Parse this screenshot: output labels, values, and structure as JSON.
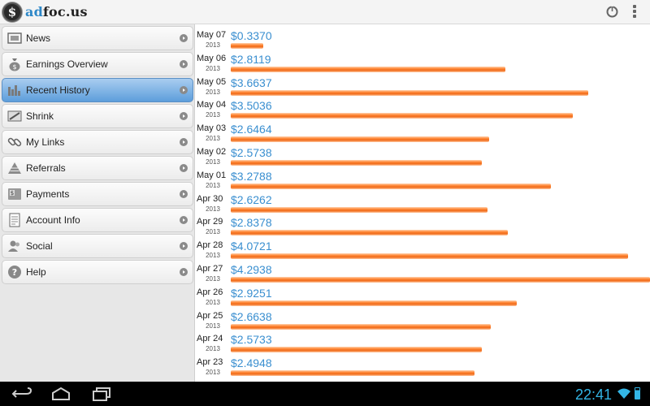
{
  "app": {
    "title_prefix": "ad",
    "title_rest": "foc.us"
  },
  "sidebar": {
    "items": [
      {
        "label": "News",
        "icon": "newspaper-icon",
        "active": false
      },
      {
        "label": "Earnings Overview",
        "icon": "money-bag-icon",
        "active": false
      },
      {
        "label": "Recent History",
        "icon": "bar-chart-icon",
        "active": true
      },
      {
        "label": "Shrink",
        "icon": "shrink-icon",
        "active": false
      },
      {
        "label": "My Links",
        "icon": "link-icon",
        "active": false
      },
      {
        "label": "Referrals",
        "icon": "pyramid-icon",
        "active": false
      },
      {
        "label": "Payments",
        "icon": "payment-icon",
        "active": false
      },
      {
        "label": "Account Info",
        "icon": "document-icon",
        "active": false
      },
      {
        "label": "Social",
        "icon": "people-icon",
        "active": false
      },
      {
        "label": "Help",
        "icon": "help-icon",
        "active": false
      }
    ]
  },
  "chart_data": {
    "type": "bar",
    "orientation": "horizontal",
    "categories": [
      "May 07 2013",
      "May 06 2013",
      "May 05 2013",
      "May 04 2013",
      "May 03 2013",
      "May 02 2013",
      "May 01 2013",
      "Apr 30 2013",
      "Apr 29 2013",
      "Apr 28 2013",
      "Apr 27 2013",
      "Apr 26 2013",
      "Apr 25 2013",
      "Apr 24 2013",
      "Apr 23 2013"
    ],
    "values": [
      0.337,
      2.8119,
      3.6637,
      3.5036,
      2.6464,
      2.5738,
      3.2788,
      2.6262,
      2.8378,
      4.0721,
      4.2938,
      2.9251,
      2.6638,
      2.5733,
      2.4948
    ]
  },
  "history": [
    {
      "date": "May 07",
      "year": "2013",
      "amount": "$0.3370"
    },
    {
      "date": "May 06",
      "year": "2013",
      "amount": "$2.8119"
    },
    {
      "date": "May 05",
      "year": "2013",
      "amount": "$3.6637"
    },
    {
      "date": "May 04",
      "year": "2013",
      "amount": "$3.5036"
    },
    {
      "date": "May 03",
      "year": "2013",
      "amount": "$2.6464"
    },
    {
      "date": "May 02",
      "year": "2013",
      "amount": "$2.5738"
    },
    {
      "date": "May 01",
      "year": "2013",
      "amount": "$3.2788"
    },
    {
      "date": "Apr 30",
      "year": "2013",
      "amount": "$2.6262"
    },
    {
      "date": "Apr 29",
      "year": "2013",
      "amount": "$2.8378"
    },
    {
      "date": "Apr 28",
      "year": "2013",
      "amount": "$4.0721"
    },
    {
      "date": "Apr 27",
      "year": "2013",
      "amount": "$4.2938"
    },
    {
      "date": "Apr 26",
      "year": "2013",
      "amount": "$2.9251"
    },
    {
      "date": "Apr 25",
      "year": "2013",
      "amount": "$2.6638"
    },
    {
      "date": "Apr 24",
      "year": "2013",
      "amount": "$2.5733"
    },
    {
      "date": "Apr 23",
      "year": "2013",
      "amount": "$2.4948"
    }
  ],
  "system": {
    "clock": "22:41"
  },
  "colors": {
    "accent": "#3a8fd0",
    "bar": "#f06a18",
    "active_item": "#5d9edb",
    "clock": "#33b5e5"
  }
}
